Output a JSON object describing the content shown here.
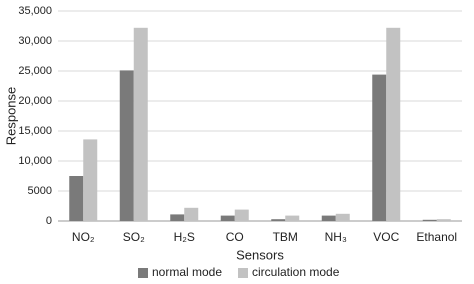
{
  "chart_data": {
    "type": "bar",
    "x_label": "Sensors",
    "y_label": "Response",
    "categories": [
      "NO₂",
      "SO₂",
      "H₂S",
      "CO",
      "TBM",
      "NH₃",
      "VOC",
      "Ethanol"
    ],
    "series": [
      {
        "name": "normal mode",
        "color": "#7a7a7a",
        "values": [
          7500,
          25100,
          1100,
          900,
          300,
          900,
          24400,
          200
        ]
      },
      {
        "name": "circulation mode",
        "color": "#c2c2c2",
        "values": [
          13600,
          32200,
          2200,
          1900,
          900,
          1200,
          32200,
          300
        ]
      }
    ],
    "ylim": [
      0,
      35000
    ],
    "yticks": [
      0,
      5000,
      {
        "value": 10000,
        "label": "10,000"
      },
      {
        "value": 15000,
        "label": "15,000"
      },
      {
        "value": 20000,
        "label": "20,000"
      },
      {
        "value": 25000,
        "label": "25,000"
      },
      {
        "value": 30000,
        "label": "30,000"
      },
      {
        "value": 35000,
        "label": "35,000"
      }
    ],
    "grid": true,
    "legend": "bottom"
  }
}
